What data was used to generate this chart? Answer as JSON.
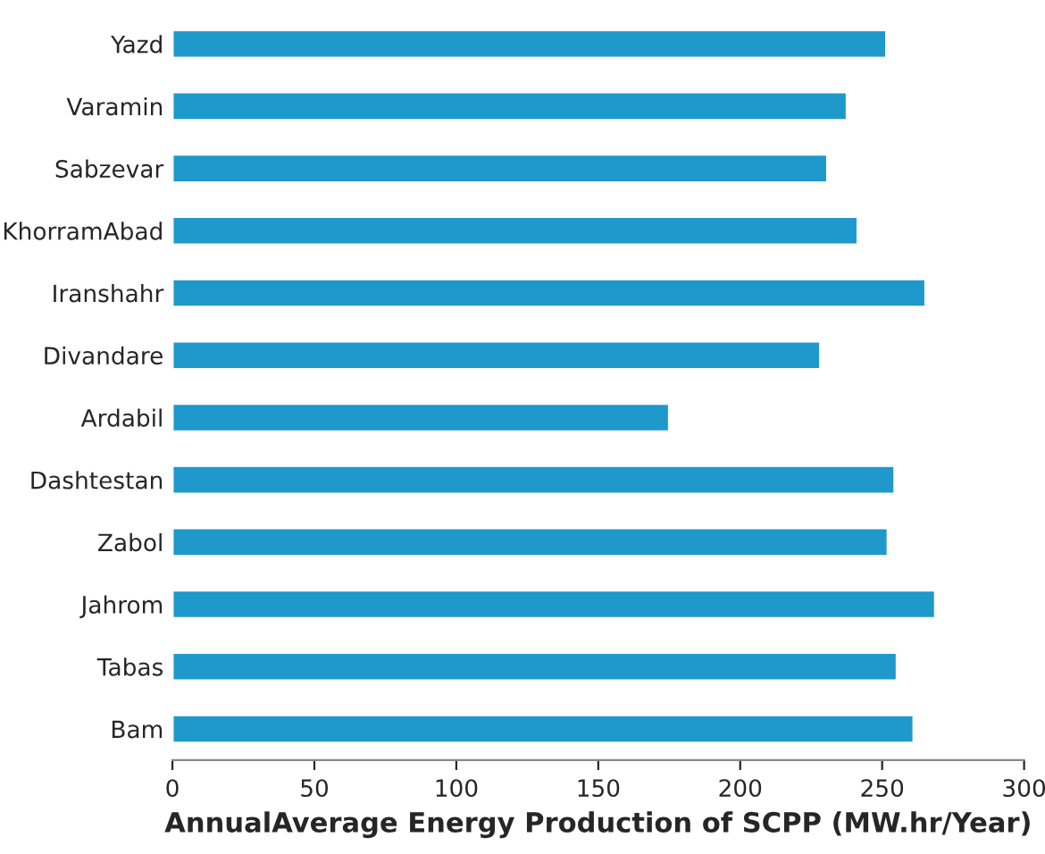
{
  "chart_data": {
    "type": "bar",
    "orientation": "horizontal",
    "xlabel": "AnnualAverage Energy Production of SCPP (MW.hr/Year)",
    "categories": [
      "Yazd",
      "Varamin",
      "Sabzevar",
      "KhorramAbad",
      "Iranshahr",
      "Divandare",
      "Ardabil",
      "Dashtestan",
      "Zabol",
      "Jahrom",
      "Tabas",
      "Bam"
    ],
    "values": [
      251.5,
      237.6,
      230.7,
      241.4,
      265.3,
      228.2,
      175,
      254.4,
      252,
      268.7,
      255.2,
      261.1
    ],
    "color": "#1f98cc",
    "xlim": [
      0,
      300
    ],
    "xticks": [
      0,
      50,
      100,
      150,
      200,
      250,
      300
    ],
    "grid": false,
    "legend": false
  }
}
